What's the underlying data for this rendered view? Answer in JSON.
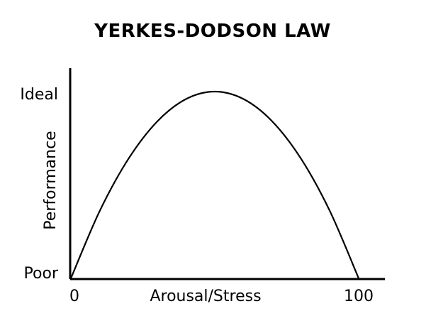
{
  "chart_data": {
    "type": "line",
    "title": "YERKES-DODSON LAW",
    "xlabel": "Arousal/Stress",
    "ylabel": "Performance",
    "xlim": [
      0,
      100
    ],
    "ylim": [
      "Poor",
      "Ideal"
    ],
    "x_tick_labels": [
      "0",
      "100"
    ],
    "y_tick_labels": [
      "Poor",
      "Ideal"
    ],
    "grid": false,
    "legend": "none",
    "line_color": "#000000",
    "series": [
      {
        "x": [
          0,
          10,
          20,
          30,
          40,
          50,
          60,
          70,
          80,
          90,
          100
        ],
        "y": [
          0.0,
          0.36,
          0.64,
          0.84,
          0.96,
          1.0,
          0.96,
          0.84,
          0.64,
          0.36,
          0.0
        ]
      }
    ]
  }
}
